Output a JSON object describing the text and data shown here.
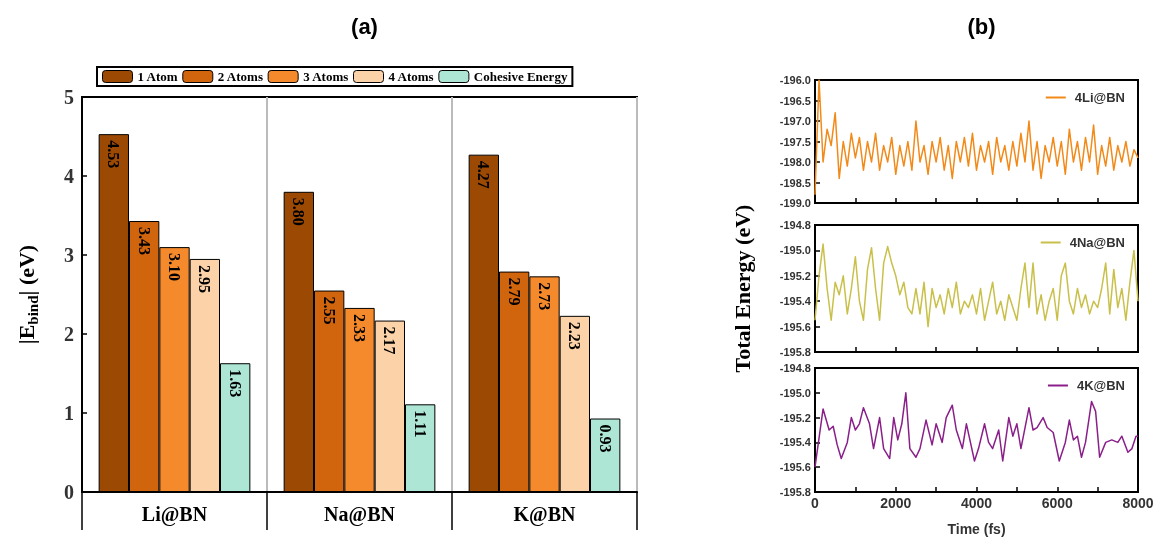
{
  "chart_data": [
    {
      "type": "bar",
      "title": "(a)",
      "ylabel": "|E$_{bind}$| (eV)",
      "categories": [
        "Li@BN",
        "Na@BN",
        "K@BN"
      ],
      "series": [
        {
          "name": "1 Atom",
          "color": "#9c4a03",
          "values": [
            4.53,
            3.8,
            4.27
          ],
          "value_labels": [
            "4.53",
            "3.80",
            "4.27"
          ]
        },
        {
          "name": "2 Atoms",
          "color": "#d1650d",
          "values": [
            3.43,
            2.55,
            2.79
          ],
          "value_labels": [
            "3.43",
            "2.55",
            "2.79"
          ]
        },
        {
          "name": "3 Atoms",
          "color": "#f58a2c",
          "values": [
            3.1,
            2.33,
            2.73
          ],
          "value_labels": [
            "3.10",
            "2.33",
            "2.73"
          ]
        },
        {
          "name": "4 Atoms",
          "color": "#fcd3a8",
          "values": [
            2.95,
            2.17,
            2.23
          ],
          "value_labels": [
            "2.95",
            "2.17",
            "2.23"
          ]
        },
        {
          "name": "Cohesive Energy",
          "color": "#aee6d6",
          "values": [
            1.63,
            1.11,
            0.93
          ],
          "value_labels": [
            "1.63",
            "1.11",
            "0.93"
          ]
        }
      ],
      "ylim": [
        0,
        5
      ],
      "yticks": [
        0,
        1,
        2,
        3,
        4,
        5
      ],
      "grid": "x",
      "legend": "top"
    },
    {
      "type": "line",
      "title": "(b)",
      "x": [
        0,
        100,
        200,
        300,
        400,
        500,
        600,
        700,
        800,
        900,
        1000,
        1100,
        1200,
        1300,
        1400,
        1500,
        1600,
        1700,
        1800,
        1900,
        2000,
        2100,
        2200,
        2300,
        2400,
        2500,
        2600,
        2700,
        2800,
        2900,
        3000,
        3100,
        3200,
        3300,
        3400,
        3500,
        3600,
        3700,
        3800,
        3900,
        4000,
        4100,
        4200,
        4300,
        4400,
        4500,
        4600,
        4700,
        4800,
        4900,
        5000,
        5100,
        5200,
        5300,
        5400,
        5500,
        5600,
        5700,
        5800,
        5900,
        6000,
        6100,
        6200,
        6300,
        6400,
        6500,
        6600,
        6700,
        6800,
        6900,
        7000,
        7100,
        7200,
        7300,
        7400,
        7500,
        7600,
        7700,
        7800,
        7900,
        8000
      ],
      "series": [
        {
          "name": "4Li@BN",
          "color": "#f28a1a",
          "values": [
            -198.8,
            -196.0,
            -198.0,
            -197.2,
            -197.6,
            -196.8,
            -198.4,
            -197.5,
            -198.1,
            -197.3,
            -197.9,
            -197.4,
            -198.2,
            -197.5,
            -198.0,
            -197.3,
            -198.2,
            -197.6,
            -198.0,
            -197.4,
            -198.3,
            -197.6,
            -198.1,
            -197.5,
            -198.2,
            -197.0,
            -198.0,
            -197.6,
            -198.3,
            -197.5,
            -198.0,
            -197.4,
            -198.2,
            -197.6,
            -198.4,
            -197.5,
            -198.0,
            -197.4,
            -198.1,
            -197.3,
            -198.2,
            -197.6,
            -198.0,
            -197.5,
            -198.3,
            -197.4,
            -198.0,
            -197.6,
            -198.2,
            -197.5,
            -198.1,
            -197.3,
            -198.0,
            -197.0,
            -198.2,
            -197.5,
            -198.4,
            -197.6,
            -198.0,
            -197.4,
            -198.1,
            -197.5,
            -198.3,
            -197.2,
            -198.0,
            -197.5,
            -198.2,
            -197.4,
            -198.0,
            -197.1,
            -198.3,
            -197.6,
            -198.1,
            -197.4,
            -198.2,
            -197.6,
            -198.0,
            -197.5,
            -198.1,
            -197.7,
            -197.9
          ]
        }
      ],
      "xlim": [
        0,
        8000
      ],
      "xticks": [
        0,
        {
          "value": 1000,
          "label": null
        },
        2000,
        {
          "value": 3000,
          "label": null
        },
        4000,
        {
          "value": 5000,
          "label": null
        },
        6000,
        {
          "value": 7000,
          "label": null
        },
        8000
      ],
      "ylim": [
        -199,
        -196
      ],
      "yticks": [
        {
          "value": -199,
          "label": "-199.0"
        },
        {
          "value": -198.5,
          "label": "-198.5"
        },
        {
          "value": -198,
          "label": "-198.0"
        },
        {
          "value": -197.5,
          "label": "-197.5"
        },
        {
          "value": -197,
          "label": "-197.0"
        },
        {
          "value": -196.5,
          "label": "-196.5"
        },
        {
          "value": -196,
          "label": "-196.0"
        }
      ],
      "tick_labels": "y",
      "legend": "top right",
      "grid": false,
      "marker": "none"
    },
    {
      "type": "line",
      "ylabel": "Total Energy (eV)",
      "x": [
        0,
        100,
        200,
        300,
        400,
        500,
        600,
        700,
        800,
        900,
        1000,
        1100,
        1200,
        1300,
        1400,
        1500,
        1600,
        1700,
        1800,
        1900,
        2000,
        2100,
        2200,
        2300,
        2400,
        2500,
        2600,
        2700,
        2800,
        2900,
        3000,
        3100,
        3200,
        3300,
        3400,
        3500,
        3600,
        3700,
        3800,
        3900,
        4000,
        4100,
        4200,
        4300,
        4400,
        4500,
        4600,
        4700,
        4800,
        4900,
        5000,
        5100,
        5200,
        5300,
        5400,
        5500,
        5600,
        5700,
        5800,
        5900,
        6000,
        6100,
        6200,
        6300,
        6400,
        6500,
        6600,
        6700,
        6800,
        6900,
        7000,
        7100,
        7200,
        7300,
        7400,
        7500,
        7600,
        7700,
        7800,
        7900,
        8000
      ],
      "series": [
        {
          "name": "4Na@BN",
          "color": "#c9c04a",
          "values": [
            -195.55,
            -195.2,
            -194.95,
            -195.3,
            -195.55,
            -195.25,
            -195.35,
            -195.2,
            -195.5,
            -195.3,
            -195.05,
            -195.4,
            -195.55,
            -195.15,
            -194.98,
            -195.3,
            -195.55,
            -195.1,
            -194.97,
            -195.1,
            -195.2,
            -195.35,
            -195.25,
            -195.45,
            -195.5,
            -195.3,
            -195.5,
            -195.25,
            -195.6,
            -195.3,
            -195.45,
            -195.35,
            -195.5,
            -195.3,
            -195.45,
            -195.25,
            -195.5,
            -195.4,
            -195.45,
            -195.35,
            -195.5,
            -195.3,
            -195.55,
            -195.4,
            -195.25,
            -195.5,
            -195.4,
            -195.55,
            -195.35,
            -195.45,
            -195.55,
            -195.3,
            -195.1,
            -195.45,
            -195.1,
            -195.5,
            -195.35,
            -195.55,
            -195.4,
            -195.3,
            -195.55,
            -195.2,
            -195.1,
            -195.4,
            -195.5,
            -195.3,
            -195.45,
            -195.35,
            -195.5,
            -195.4,
            -195.45,
            -195.3,
            -195.1,
            -195.5,
            -195.15,
            -195.45,
            -195.3,
            -195.55,
            -195.25,
            -195.0,
            -195.4
          ]
        }
      ],
      "xlim": [
        0,
        8000
      ],
      "xticks": [
        0,
        {
          "value": 1000,
          "label": null
        },
        2000,
        {
          "value": 3000,
          "label": null
        },
        4000,
        {
          "value": 5000,
          "label": null
        },
        6000,
        {
          "value": 7000,
          "label": null
        },
        8000
      ],
      "ylim": [
        -195.8,
        -194.8
      ],
      "yticks": [
        {
          "value": -195.8,
          "label": "-195.8"
        },
        {
          "value": -195.6,
          "label": "-195.6"
        },
        {
          "value": -195.4,
          "label": "-195.4"
        },
        {
          "value": -195.2,
          "label": "-195.2"
        },
        {
          "value": -195,
          "label": "-195.0"
        },
        {
          "value": -194.8,
          "label": "-194.8"
        }
      ],
      "tick_labels": "y",
      "legend": "top right",
      "grid": false,
      "marker": "none"
    },
    {
      "type": "line",
      "xlabel": "Time (fs)",
      "x": [
        0,
        200,
        350,
        450,
        550,
        650,
        800,
        900,
        1000,
        1100,
        1200,
        1350,
        1450,
        1600,
        1700,
        1850,
        1950,
        2050,
        2150,
        2250,
        2350,
        2500,
        2600,
        2750,
        2900,
        3000,
        3150,
        3250,
        3400,
        3500,
        3650,
        3750,
        3850,
        3950,
        4050,
        4200,
        4300,
        4400,
        4550,
        4650,
        4800,
        4900,
        5000,
        5100,
        5300,
        5400,
        5500,
        5650,
        5750,
        5900,
        6050,
        6200,
        6300,
        6400,
        6500,
        6600,
        6700,
        6850,
        6950,
        7050,
        7200,
        7350,
        7500,
        7600,
        7750,
        7850,
        7950,
        8000
      ],
      "series": [
        {
          "name": "4K@BN",
          "color": "#8a1f8a",
          "values": [
            -195.6,
            -195.13,
            -195.3,
            -195.27,
            -195.42,
            -195.53,
            -195.4,
            -195.2,
            -195.3,
            -195.25,
            -195.12,
            -195.25,
            -195.45,
            -195.2,
            -195.45,
            -195.53,
            -195.2,
            -195.38,
            -195.25,
            -195.0,
            -195.45,
            -195.52,
            -195.45,
            -195.22,
            -195.42,
            -195.25,
            -195.4,
            -195.2,
            -195.1,
            -195.3,
            -195.45,
            -195.25,
            -195.4,
            -195.55,
            -195.45,
            -195.25,
            -195.4,
            -195.45,
            -195.3,
            -195.55,
            -195.2,
            -195.35,
            -195.25,
            -195.45,
            -195.12,
            -195.3,
            -195.28,
            -195.2,
            -195.28,
            -195.32,
            -195.55,
            -195.4,
            -195.22,
            -195.38,
            -195.35,
            -195.52,
            -195.4,
            -195.07,
            -195.15,
            -195.52,
            -195.4,
            -195.38,
            -195.4,
            -195.35,
            -195.48,
            -195.45,
            -195.35,
            -195.35
          ]
        }
      ],
      "xlim": [
        0,
        8000
      ],
      "xticks": [
        0,
        {
          "value": 1000,
          "label": null
        },
        2000,
        {
          "value": 3000,
          "label": null
        },
        4000,
        {
          "value": 5000,
          "label": null
        },
        6000,
        {
          "value": 7000,
          "label": null
        },
        8000
      ],
      "ylim": [
        -195.8,
        -194.8
      ],
      "yticks": [
        {
          "value": -195.8,
          "label": "-195.8"
        },
        {
          "value": -195.6,
          "label": "-195.6"
        },
        {
          "value": -195.4,
          "label": "-195.4"
        },
        {
          "value": -195.2,
          "label": "-195.2"
        },
        {
          "value": -195,
          "label": "-195.0"
        },
        {
          "value": -194.8,
          "label": "-194.8"
        }
      ],
      "legend": "top right",
      "grid": false,
      "marker": "none"
    }
  ]
}
